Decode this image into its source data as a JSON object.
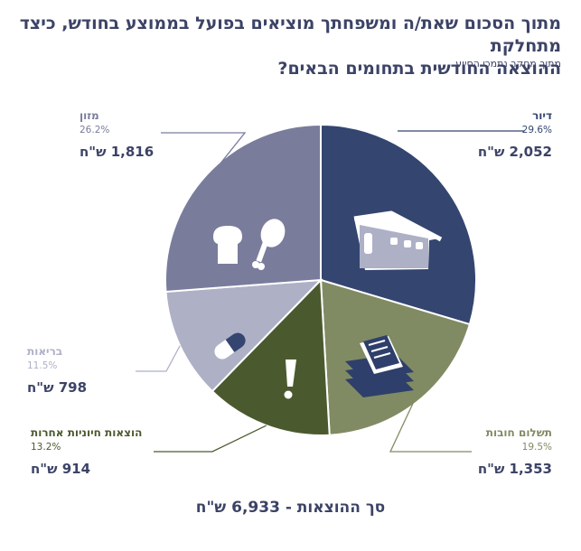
{
  "header": {
    "title_line1": "מתוך הסכום שאת/ה ומשפחתך מוציאים בפועל בממוצע בחודש, כיצד מתחלקת",
    "title_line2": "ההוצאה החודשית בתחומים הבאים?",
    "subtitle": "מתוך מחקר נתמכי הסיוע"
  },
  "total_label": "סך ההוצאות - 6,933 ש\"ח",
  "chart_data": {
    "type": "pie",
    "title": "מתוך הסכום שאת/ה ומשפחתך מוציאים בפועל בממוצע בחודש, כיצד מתחלקת ההוצאה החודשית בתחומים הבאים?",
    "total": 6933,
    "slices": [
      {
        "label": "דיור",
        "percent": 29.6,
        "percent_label": "29.6%",
        "amount": 2052,
        "amount_label": "2,052 ש\"ח",
        "color": "#344570",
        "label_color": "#344570",
        "icon": "house-icon"
      },
      {
        "label": "תשלום חובות",
        "percent": 19.5,
        "percent_label": "19.5%",
        "amount": 1353,
        "amount_label": "1,353 ש\"ח",
        "color": "#818b63",
        "label_color": "#818b63",
        "icon": "documents-icon"
      },
      {
        "label": "הוצאות חיוניות אחרות",
        "percent": 13.2,
        "percent_label": "13.2%",
        "amount": 914,
        "amount_label": "914 ש\"ח",
        "color": "#4b5a2e",
        "label_color": "#4b5a2e",
        "icon": "exclamation-icon"
      },
      {
        "label": "בריאות",
        "percent": 11.5,
        "percent_label": "11.5%",
        "amount": 798,
        "amount_label": "798 ש\"ח",
        "color": "#aeb0c6",
        "label_color": "#aeb0c6",
        "icon": "pill-icon"
      },
      {
        "label": "מזון",
        "percent": 26.2,
        "percent_label": "26.2%",
        "amount": 1816,
        "amount_label": "1,816 ש\"ח",
        "color": "#7a7c9c",
        "label_color": "#7a7c9c",
        "icon": "food-icon"
      }
    ]
  },
  "colors": {
    "title": "#3c4366",
    "separator": "#ffffff",
    "icon_fill": "#ffffff"
  }
}
